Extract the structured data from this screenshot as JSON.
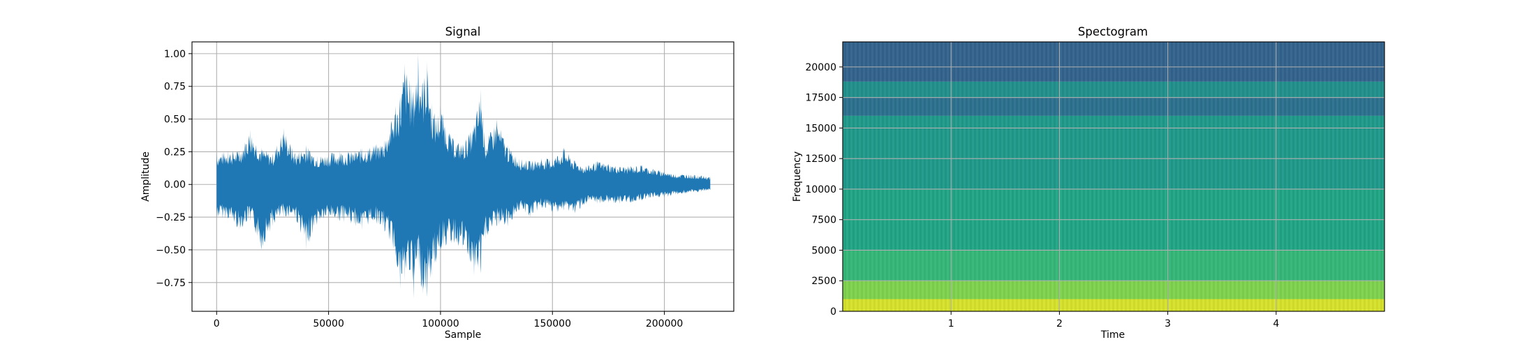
{
  "chart_data": [
    {
      "type": "line",
      "title": "Signal",
      "xlabel": "Sample",
      "ylabel": "Amplitude",
      "xlim": [
        -11000,
        231000
      ],
      "ylim": [
        -0.97,
        1.09
      ],
      "xticks": [
        0,
        50000,
        100000,
        150000,
        200000
      ],
      "xtick_labels": [
        "0",
        "50000",
        "100000",
        "150000",
        "200000"
      ],
      "yticks": [
        -0.75,
        -0.5,
        -0.25,
        0.0,
        0.25,
        0.5,
        0.75,
        1.0
      ],
      "ytick_labels": [
        "−0.75",
        "−0.50",
        "−0.25",
        "0.00",
        "0.25",
        "0.50",
        "0.75",
        "1.00"
      ],
      "grid": true,
      "color": "#1f77b4",
      "series": [
        {
          "x": [
            0,
            5000,
            10000,
            15000,
            20000,
            25000,
            30000,
            35000,
            40000,
            45000,
            50000,
            55000,
            60000,
            65000,
            70000,
            75000,
            80000,
            82000,
            84000,
            86000,
            88000,
            90000,
            92000,
            94000,
            96000,
            98000,
            100000,
            105000,
            110000,
            115000,
            118000,
            120000,
            125000,
            130000,
            135000,
            140000,
            145000,
            150000,
            155000,
            160000,
            165000,
            170000,
            175000,
            180000,
            185000,
            190000,
            195000,
            200000,
            205000,
            210000,
            215000,
            220500
          ],
          "upper": [
            0.24,
            0.26,
            0.26,
            0.42,
            0.28,
            0.24,
            0.43,
            0.24,
            0.3,
            0.22,
            0.24,
            0.26,
            0.25,
            0.28,
            0.3,
            0.34,
            0.6,
            0.67,
            0.92,
            0.8,
            0.72,
            1.0,
            0.78,
            0.94,
            0.62,
            0.52,
            0.6,
            0.36,
            0.31,
            0.46,
            0.73,
            0.32,
            0.5,
            0.3,
            0.2,
            0.18,
            0.2,
            0.2,
            0.28,
            0.18,
            0.14,
            0.18,
            0.16,
            0.14,
            0.14,
            0.15,
            0.12,
            0.1,
            0.08,
            0.08,
            0.07,
            0.06
          ],
          "lower": [
            -0.26,
            -0.26,
            -0.35,
            -0.28,
            -0.5,
            -0.32,
            -0.25,
            -0.25,
            -0.5,
            -0.3,
            -0.26,
            -0.28,
            -0.3,
            -0.35,
            -0.28,
            -0.36,
            -0.55,
            -0.8,
            -0.74,
            -0.65,
            -0.87,
            -0.6,
            -0.84,
            -0.86,
            -0.7,
            -0.6,
            -0.5,
            -0.45,
            -0.5,
            -0.7,
            -0.68,
            -0.42,
            -0.32,
            -0.32,
            -0.2,
            -0.25,
            -0.18,
            -0.22,
            -0.2,
            -0.22,
            -0.15,
            -0.15,
            -0.14,
            -0.15,
            -0.14,
            -0.12,
            -0.1,
            -0.1,
            -0.08,
            -0.07,
            -0.06,
            -0.05
          ]
        }
      ]
    },
    {
      "type": "heatmap",
      "title": "Spectogram",
      "xlabel": "Time",
      "ylabel": "Frequency",
      "xlim": [
        0,
        5
      ],
      "ylim": [
        0,
        22050
      ],
      "xticks": [
        1,
        2,
        3,
        4
      ],
      "xtick_labels": [
        "1",
        "2",
        "3",
        "4"
      ],
      "yticks": [
        0,
        2500,
        5000,
        7500,
        10000,
        12500,
        15000,
        17500,
        20000
      ],
      "ytick_labels": [
        "0",
        "2500",
        "5000",
        "7500",
        "10000",
        "12500",
        "15000",
        "17500",
        "20000"
      ],
      "grid": true,
      "colormap": "viridis",
      "bands": [
        {
          "f_from": 0,
          "f_to": 1000,
          "color": "#d6e22b"
        },
        {
          "f_from": 1000,
          "f_to": 2500,
          "color": "#7fd34e"
        },
        {
          "f_from": 2500,
          "f_to": 5000,
          "color": "#35b779"
        },
        {
          "f_from": 5000,
          "f_to": 10000,
          "color": "#21a685"
        },
        {
          "f_from": 10000,
          "f_to": 16000,
          "color": "#1f9a8a"
        },
        {
          "f_from": 16000,
          "f_to": 17500,
          "color": "#2c718e"
        },
        {
          "f_from": 17500,
          "f_to": 18800,
          "color": "#21918c"
        },
        {
          "f_from": 18800,
          "f_to": 22050,
          "color": "#33638d"
        }
      ]
    }
  ]
}
